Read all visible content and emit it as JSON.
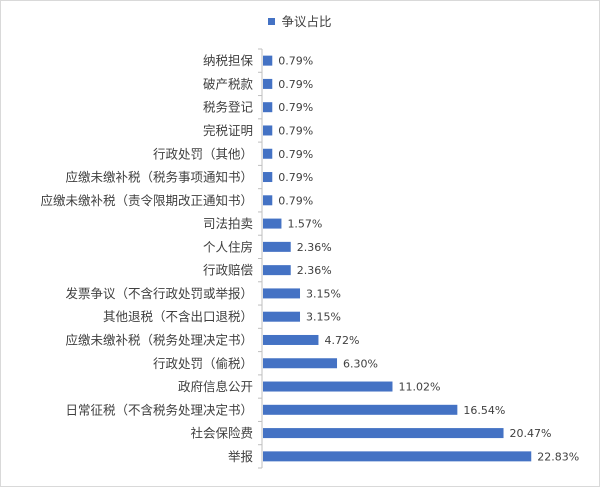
{
  "chart_data": {
    "type": "bar",
    "orientation": "horizontal",
    "legend_position": "top",
    "series": [
      {
        "name": "争议占比",
        "color": "#4472C4",
        "values": [
          0.79,
          0.79,
          0.79,
          0.79,
          0.79,
          0.79,
          0.79,
          1.57,
          2.36,
          2.36,
          3.15,
          3.15,
          4.72,
          6.3,
          11.02,
          16.54,
          20.47,
          22.83
        ],
        "labels": [
          "0.79%",
          "0.79%",
          "0.79%",
          "0.79%",
          "0.79%",
          "0.79%",
          "0.79%",
          "1.57%",
          "2.36%",
          "2.36%",
          "3.15%",
          "3.15%",
          "4.72%",
          "6.30%",
          "11.02%",
          "16.54%",
          "20.47%",
          "22.83%"
        ]
      }
    ],
    "categories": [
      "纳税担保",
      "破产税款",
      "税务登记",
      "完税证明",
      "行政处罚（其他）",
      "应缴未缴补税（税务事项通知书）",
      "应缴未缴补税（责令限期改正通知书）",
      "司法拍卖",
      "个人住房",
      "行政赔偿",
      "发票争议（不含行政处罚或举报）",
      "其他退税（不含出口退税）",
      "应缴未缴补税（税务处理决定书）",
      "行政处罚（偷税）",
      "政府信息公开",
      "日常征税（不含税务处理决定书）",
      "社会保险费",
      "举报"
    ],
    "xlim": [
      0,
      25
    ],
    "grid": false
  }
}
